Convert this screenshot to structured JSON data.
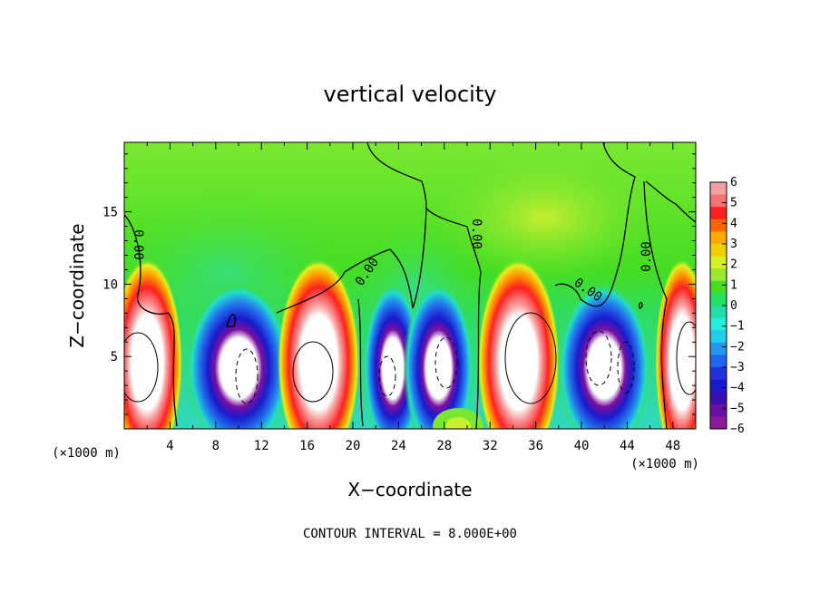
{
  "chart_data": {
    "type": "heatmap",
    "title": "vertical velocity",
    "xlabel": "X−coordinate",
    "ylabel": "Z−coordinate",
    "x_unit_left": "(×1000 m)",
    "x_unit_right": "(×1000 m)",
    "x_ticks": [
      4,
      8,
      12,
      16,
      20,
      24,
      28,
      32,
      36,
      40,
      44,
      48
    ],
    "y_ticks": [
      5,
      10,
      15
    ],
    "xlim": [
      0,
      50
    ],
    "ylim": [
      0,
      19.8
    ],
    "colorbar": {
      "ticks": [
        "6",
        "5",
        "4",
        "3",
        "2",
        "1",
        "0",
        "−1",
        "−2",
        "−3",
        "−4",
        "−5",
        "−6"
      ],
      "range": [
        -6,
        6
      ],
      "colors": [
        "#f5a0a0",
        "#f87070",
        "#ff2020",
        "#ff6600",
        "#ffaa00",
        "#f0d000",
        "#d8f020",
        "#9ae830",
        "#44dd22",
        "#22e060",
        "#22ddaa",
        "#22eedd",
        "#22ccee",
        "#2299ee",
        "#2266ee",
        "#2233dd",
        "#1a1acc",
        "#3a10b0",
        "#6a10a8",
        "#8c1a9a"
      ]
    },
    "contour_labels": [
      "0.00",
      "0.00",
      "0.00",
      "0.00",
      "0.00"
    ],
    "cells": [
      {
        "x": 2,
        "w": 4,
        "value": 8
      },
      {
        "x": 10,
        "w": 7,
        "value": -8
      },
      {
        "x": 17,
        "w": 5,
        "value": 8
      },
      {
        "x": 23.5,
        "w": 3,
        "value": -8
      },
      {
        "x": 27.5,
        "w": 4,
        "value": -8
      },
      {
        "x": 34.5,
        "w": 5,
        "value": 8
      },
      {
        "x": 42,
        "w": 6,
        "value": -8
      },
      {
        "x": 48.8,
        "w": 2.5,
        "value": 8
      }
    ]
  },
  "footer_text": "CONTOUR INTERVAL = 8.000E+00"
}
